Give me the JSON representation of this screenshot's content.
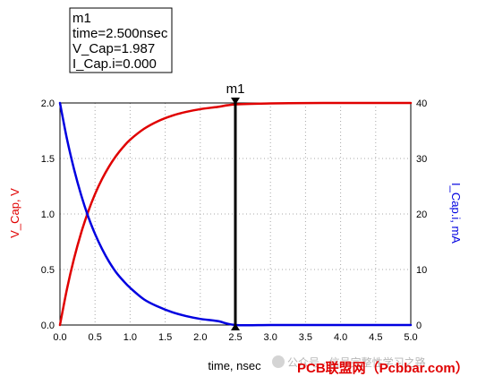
{
  "chart_data": {
    "type": "line",
    "xlabel": "time, nsec",
    "ylabel_left": "V_Cap, V",
    "ylabel_right": "I_Cap.i, mA",
    "xlim": [
      0,
      5
    ],
    "ylim_left": [
      0,
      2
    ],
    "ylim_right": [
      0,
      40
    ],
    "grid": true,
    "x_ticks": [
      "0.0",
      "0.5",
      "1.0",
      "1.5",
      "2.0",
      "2.5",
      "3.0",
      "3.5",
      "4.0",
      "4.5",
      "5.0"
    ],
    "y_left_ticks": [
      "0.0",
      "0.5",
      "1.0",
      "1.5",
      "2.0"
    ],
    "y_right_ticks": [
      "0",
      "10",
      "20",
      "30",
      "40"
    ],
    "series": [
      {
        "name": "V_Cap",
        "axis": "left",
        "color": "#e00000",
        "x": [
          0,
          0.1,
          0.2,
          0.3,
          0.4,
          0.5,
          0.6,
          0.7,
          0.8,
          0.9,
          1.0,
          1.2,
          1.4,
          1.6,
          1.8,
          2.0,
          2.25,
          2.5,
          3.0,
          3.5,
          4.0,
          4.5,
          5.0
        ],
        "y": [
          0,
          0.325,
          0.597,
          0.826,
          1.018,
          1.18,
          1.315,
          1.428,
          1.523,
          1.602,
          1.669,
          1.768,
          1.837,
          1.886,
          1.92,
          1.944,
          1.965,
          1.987,
          1.996,
          1.999,
          2.0,
          2.0,
          2.0
        ]
      },
      {
        "name": "I_Cap.i",
        "axis": "right",
        "color": "#0000e0",
        "x": [
          0,
          0.1,
          0.2,
          0.3,
          0.4,
          0.5,
          0.6,
          0.7,
          0.8,
          0.9,
          1.0,
          1.2,
          1.4,
          1.6,
          1.8,
          2.0,
          2.25,
          2.5,
          3.0,
          3.5,
          4.0,
          4.5,
          5.0
        ],
        "y": [
          40,
          33.5,
          28.1,
          23.5,
          19.6,
          16.4,
          13.7,
          11.4,
          9.5,
          8.0,
          6.7,
          4.6,
          3.3,
          2.3,
          1.6,
          1.1,
          0.7,
          0.0,
          0.0,
          0.0,
          0.0,
          0.0,
          0.0
        ]
      }
    ],
    "markers": [
      {
        "name": "m1",
        "x": 2.5,
        "readout": [
          "m1",
          "time=2.500nsec",
          "V_Cap=1.987",
          "I_Cap.i=0.000"
        ]
      }
    ]
  },
  "watermark": {
    "wechat_text": "公众号 · 信号完整性学习之路",
    "brand_text": "PCB联盟网（Pcbbar.com）"
  }
}
